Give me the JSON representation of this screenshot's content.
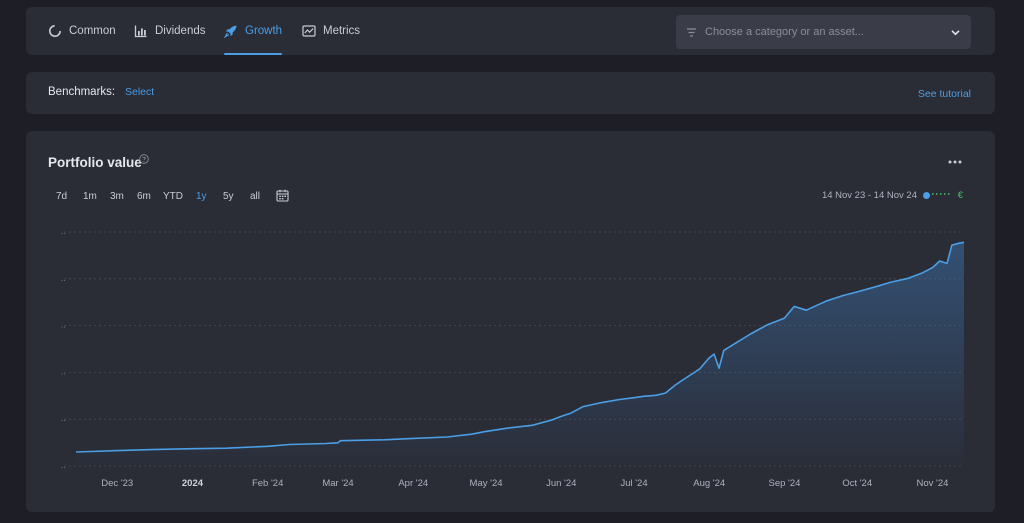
{
  "tabs": [
    {
      "label": "Common",
      "icon": "pie-chart-icon"
    },
    {
      "label": "Dividends",
      "icon": "bar-chart-icon"
    },
    {
      "label": "Growth",
      "icon": "rocket-icon",
      "active": true
    },
    {
      "label": "Metrics",
      "icon": "line-chart-icon"
    }
  ],
  "category_select": {
    "placeholder": "Choose a category or an asset..."
  },
  "benchmarks": {
    "label": "Benchmarks:",
    "select_label": "Select",
    "tutorial_label": "See tutorial"
  },
  "chart_card": {
    "title": "Portfolio value",
    "ranges": [
      "7d",
      "1m",
      "3m",
      "6m",
      "YTD",
      "1y",
      "5y",
      "all"
    ],
    "active_range": "1y",
    "date_range": "14 Nov 23 - 14 Nov 24",
    "currency": "€"
  },
  "colors": {
    "accent": "#4a9fe6",
    "currency": "#4fbf6a",
    "background": "#1e1f26",
    "card": "#2a2c36"
  },
  "chart_data": {
    "type": "area",
    "title": "Portfolio value",
    "x_start": "2023-11-14",
    "x_end": "2024-11-14",
    "x_tick_labels": [
      {
        "label": "Dec '23",
        "date": "2023-12-01"
      },
      {
        "label": "2024",
        "date": "2024-01-01",
        "bold": true
      },
      {
        "label": "Feb '24",
        "date": "2024-02-01"
      },
      {
        "label": "Mar '24",
        "date": "2024-03-01"
      },
      {
        "label": "Apr '24",
        "date": "2024-04-01"
      },
      {
        "label": "May '24",
        "date": "2024-05-01"
      },
      {
        "label": "Jun '24",
        "date": "2024-06-01"
      },
      {
        "label": "Jul '24",
        "date": "2024-07-01"
      },
      {
        "label": "Aug '24",
        "date": "2024-08-01"
      },
      {
        "label": "Sep '24",
        "date": "2024-09-01"
      },
      {
        "label": "Oct '24",
        "date": "2024-10-01"
      },
      {
        "label": "Nov '24",
        "date": "2024-11-01"
      }
    ],
    "y_tick_labels": [
      "..",
      "..",
      "..",
      "..",
      "..",
      ".."
    ],
    "ylim": [
      0,
      100
    ],
    "grid": true,
    "series": [
      {
        "points": [
          [
            "2023-11-14",
            6
          ],
          [
            "2023-11-20",
            6.2
          ],
          [
            "2023-12-01",
            6.6
          ],
          [
            "2023-12-15",
            7
          ],
          [
            "2024-01-01",
            7.4
          ],
          [
            "2024-01-15",
            7.6
          ],
          [
            "2024-02-01",
            8.4
          ],
          [
            "2024-02-10",
            9.2
          ],
          [
            "2024-02-25",
            9.6
          ],
          [
            "2024-03-01",
            9.9
          ],
          [
            "2024-03-02",
            10.8
          ],
          [
            "2024-03-20",
            11.2
          ],
          [
            "2024-04-01",
            11.8
          ],
          [
            "2024-04-15",
            12.4
          ],
          [
            "2024-04-25",
            13.6
          ],
          [
            "2024-05-01",
            14.8
          ],
          [
            "2024-05-10",
            16.2
          ],
          [
            "2024-05-20",
            17.4
          ],
          [
            "2024-05-28",
            19.6
          ],
          [
            "2024-06-01",
            21.2
          ],
          [
            "2024-06-05",
            22.6
          ],
          [
            "2024-06-10",
            25.4
          ],
          [
            "2024-06-18",
            27.2
          ],
          [
            "2024-06-25",
            28.4
          ],
          [
            "2024-07-01",
            29.2
          ],
          [
            "2024-07-05",
            29.8
          ],
          [
            "2024-07-10",
            30.2
          ],
          [
            "2024-07-14",
            31.2
          ],
          [
            "2024-07-18",
            34.6
          ],
          [
            "2024-07-22",
            37.4
          ],
          [
            "2024-07-28",
            41.4
          ],
          [
            "2024-08-01",
            46.2
          ],
          [
            "2024-08-03",
            47.8
          ],
          [
            "2024-08-05",
            41.8
          ],
          [
            "2024-08-07",
            49.4
          ],
          [
            "2024-08-12",
            52.6
          ],
          [
            "2024-08-18",
            56.4
          ],
          [
            "2024-08-25",
            60.4
          ],
          [
            "2024-09-01",
            63.2
          ],
          [
            "2024-09-05",
            68.2
          ],
          [
            "2024-09-10",
            66.6
          ],
          [
            "2024-09-18",
            70.4
          ],
          [
            "2024-09-25",
            72.8
          ],
          [
            "2024-10-01",
            74.4
          ],
          [
            "2024-10-08",
            76.4
          ],
          [
            "2024-10-15",
            78.6
          ],
          [
            "2024-10-22",
            80.2
          ],
          [
            "2024-10-28",
            82.6
          ],
          [
            "2024-11-01",
            84.8
          ],
          [
            "2024-11-04",
            87.6
          ],
          [
            "2024-11-07",
            86.6
          ],
          [
            "2024-11-09",
            94.4
          ],
          [
            "2024-11-12",
            95.2
          ],
          [
            "2024-11-14",
            95.6
          ]
        ]
      }
    ]
  }
}
